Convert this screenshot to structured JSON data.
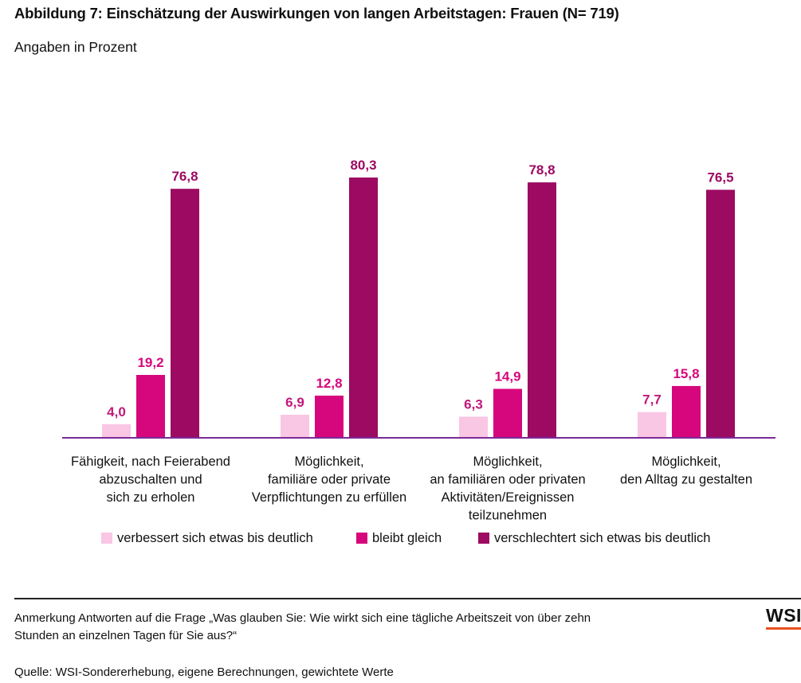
{
  "title": "Abbildung 7: Einschätzung der Auswirkungen von langen Arbeitstagen: Frauen (N= 719)",
  "subtitle": "Angaben in Prozent",
  "note": {
    "line1": "Anmerkung Antworten auf die Frage „Was glauben Sie: Wie wirkt sich eine tägliche Arbeitszeit von über zehn",
    "line2": "Stunden an einzelnen Tagen für Sie aus?“"
  },
  "source": "Quelle: WSI-Sondererhebung, eigene Berechnungen, gewichtete Werte",
  "logo": "WSI",
  "colors": {
    "series1": "#f9c6e4",
    "series2": "#d6067c",
    "series3": "#9c0a62",
    "axis": "#7b2a9a",
    "logo_accent": "#e8501c"
  },
  "chart_data": {
    "type": "bar",
    "categories": [
      [
        "Fähigkeit, nach Feierabend",
        "abzuschalten und",
        "sich zu erholen"
      ],
      [
        "Möglichkeit,",
        "familiäre oder private",
        "Verpflichtungen zu erfüllen"
      ],
      [
        "Möglichkeit,",
        "an familiären oder privaten",
        "Aktivitäten/Ereignissen",
        "teilzunehmen"
      ],
      [
        "Möglichkeit,",
        "den Alltag zu gestalten"
      ]
    ],
    "series": [
      {
        "name": "verbessert sich etwas bis deutlich",
        "values": [
          4.0,
          6.9,
          6.3,
          7.7
        ],
        "labels": [
          "4,0",
          "6,9",
          "6,3",
          "7,7"
        ]
      },
      {
        "name": "bleibt gleich",
        "values": [
          19.2,
          12.8,
          14.9,
          15.8
        ],
        "labels": [
          "19,2",
          "12,8",
          "14,9",
          "15,8"
        ]
      },
      {
        "name": "verschlechtert sich etwas bis deutlich",
        "values": [
          76.8,
          80.3,
          78.8,
          76.5
        ],
        "labels": [
          "76,8",
          "80,3",
          "78,8",
          "76,5"
        ]
      }
    ],
    "ylim": [
      0,
      100
    ],
    "grid": false,
    "legend_position": "bottom"
  }
}
